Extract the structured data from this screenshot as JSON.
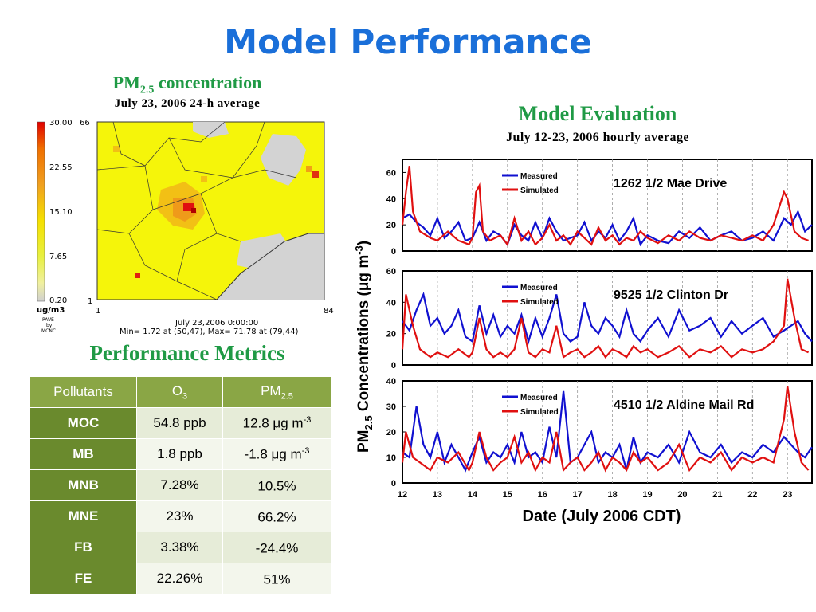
{
  "slide": {
    "title": "Model Performance"
  },
  "map": {
    "title_main": "PM",
    "title_sub": "2.5",
    "title_rest": " concentration",
    "subtitle": "July 23, 2006 24-h average",
    "colorbar_labels": [
      "30.00",
      "22.55",
      "15.10",
      "7.65",
      "0.20"
    ],
    "colorbar_unit": "ug/m3",
    "credit_lines": [
      "PAVE",
      "by",
      "MCNC"
    ],
    "axis_top_y": "66",
    "axis_bottom_y": "1",
    "axis_left_x": "1",
    "axis_right_x": "84",
    "timestamp": "July 23,2006 0:00:00",
    "minmax": "Min=  1.72 at (50,47), Max= 71.78 at (79,44)",
    "colors": {
      "low": "#f5f50a",
      "mid": "#f2b515",
      "high": "#e01010",
      "background": "#d3d3d3"
    }
  },
  "eval": {
    "title": "Model Evaluation",
    "subtitle": "July 12-23, 2006 hourly average",
    "ylabel_pre": "PM",
    "ylabel_sub": "2.5",
    "ylabel_mid": " Concentrations (μg m",
    "ylabel_sup": "-3",
    "ylabel_end": ")",
    "xlabel": "Date (July 2006 CDT)"
  },
  "chart_data": [
    {
      "type": "line",
      "station": "1262 1/2 Mae Drive",
      "x_ticks": [],
      "yticks": [
        0,
        20,
        40,
        60
      ],
      "ylim": [
        0,
        70
      ],
      "xlim": [
        12,
        23.7
      ],
      "grid": "dashed vertical at each day",
      "legend_position": "top-left",
      "series": [
        {
          "name": "Measured",
          "color": "#1010d0",
          "x": [
            12,
            12.2,
            12.4,
            12.6,
            12.8,
            13,
            13.2,
            13.4,
            13.6,
            13.8,
            14,
            14.2,
            14.4,
            14.6,
            14.8,
            15,
            15.2,
            15.4,
            15.6,
            15.8,
            16,
            16.2,
            16.4,
            16.6,
            16.8,
            17,
            17.2,
            17.4,
            17.6,
            17.8,
            18,
            18.2,
            18.4,
            18.6,
            18.8,
            19,
            19.3,
            19.6,
            19.9,
            20.2,
            20.5,
            20.8,
            21.1,
            21.4,
            21.7,
            22,
            22.3,
            22.6,
            22.9,
            23.1,
            23.3,
            23.5,
            23.7
          ],
          "y": [
            25,
            28,
            22,
            18,
            12,
            25,
            10,
            15,
            22,
            8,
            10,
            22,
            8,
            15,
            12,
            5,
            20,
            12,
            8,
            22,
            10,
            25,
            15,
            8,
            10,
            12,
            22,
            8,
            15,
            10,
            20,
            8,
            15,
            25,
            5,
            12,
            8,
            6,
            15,
            10,
            18,
            8,
            12,
            15,
            8,
            10,
            15,
            8,
            25,
            20,
            30,
            15,
            20
          ]
        },
        {
          "name": "Simulated",
          "color": "#e01010",
          "x": [
            12,
            12.1,
            12.2,
            12.3,
            12.5,
            12.8,
            13,
            13.3,
            13.6,
            13.9,
            14,
            14.1,
            14.2,
            14.3,
            14.5,
            14.8,
            15,
            15.2,
            15.4,
            15.6,
            15.8,
            16,
            16.2,
            16.4,
            16.6,
            16.8,
            17,
            17.2,
            17.4,
            17.6,
            17.8,
            18,
            18.2,
            18.4,
            18.6,
            18.8,
            19,
            19.3,
            19.6,
            19.9,
            20.2,
            20.5,
            20.8,
            21.1,
            21.4,
            21.7,
            22,
            22.3,
            22.6,
            22.9,
            23,
            23.2,
            23.4,
            23.6
          ],
          "y": [
            20,
            45,
            65,
            30,
            15,
            10,
            8,
            15,
            8,
            5,
            10,
            45,
            50,
            15,
            8,
            12,
            5,
            25,
            8,
            15,
            5,
            10,
            20,
            8,
            12,
            5,
            15,
            10,
            5,
            18,
            8,
            12,
            5,
            10,
            8,
            15,
            10,
            6,
            12,
            8,
            15,
            10,
            8,
            12,
            10,
            8,
            12,
            8,
            20,
            45,
            40,
            15,
            10,
            8
          ]
        }
      ]
    },
    {
      "type": "line",
      "station": "9525 1/2 Clinton Dr",
      "yticks": [
        0,
        20,
        40,
        60
      ],
      "ylim": [
        0,
        60
      ],
      "xlim": [
        12,
        23.7
      ],
      "grid": "dashed vertical at each day",
      "legend_position": "top-left",
      "series": [
        {
          "name": "Measured",
          "color": "#1010d0",
          "x": [
            12,
            12.2,
            12.4,
            12.6,
            12.8,
            13,
            13.2,
            13.4,
            13.6,
            13.8,
            14,
            14.2,
            14.4,
            14.6,
            14.8,
            15,
            15.2,
            15.4,
            15.6,
            15.8,
            16,
            16.2,
            16.4,
            16.6,
            16.8,
            17,
            17.2,
            17.4,
            17.6,
            17.8,
            18,
            18.2,
            18.4,
            18.6,
            18.8,
            19,
            19.3,
            19.6,
            19.9,
            20.2,
            20.5,
            20.8,
            21.1,
            21.4,
            21.7,
            22,
            22.3,
            22.6,
            22.9,
            23.1,
            23.3,
            23.5,
            23.7
          ],
          "y": [
            28,
            22,
            35,
            45,
            25,
            30,
            20,
            25,
            35,
            18,
            15,
            38,
            20,
            32,
            18,
            25,
            20,
            32,
            15,
            30,
            18,
            30,
            45,
            20,
            15,
            18,
            40,
            25,
            20,
            30,
            25,
            18,
            35,
            20,
            15,
            22,
            30,
            18,
            35,
            22,
            25,
            30,
            18,
            28,
            20,
            25,
            30,
            18,
            22,
            25,
            28,
            20,
            15
          ]
        },
        {
          "name": "Simulated",
          "color": "#e01010",
          "x": [
            12,
            12.1,
            12.3,
            12.5,
            12.8,
            13,
            13.3,
            13.6,
            13.9,
            14,
            14.2,
            14.4,
            14.6,
            14.8,
            15,
            15.2,
            15.4,
            15.6,
            15.8,
            16,
            16.2,
            16.4,
            16.6,
            16.8,
            17,
            17.2,
            17.4,
            17.6,
            17.8,
            18,
            18.2,
            18.4,
            18.6,
            18.8,
            19,
            19.3,
            19.6,
            19.9,
            20.2,
            20.5,
            20.8,
            21.1,
            21.4,
            21.7,
            22,
            22.3,
            22.6,
            22.9,
            23,
            23.2,
            23.4,
            23.6
          ],
          "y": [
            10,
            45,
            25,
            10,
            5,
            8,
            5,
            10,
            5,
            8,
            30,
            10,
            5,
            8,
            5,
            10,
            30,
            8,
            5,
            10,
            8,
            25,
            5,
            8,
            10,
            5,
            8,
            12,
            5,
            10,
            8,
            5,
            12,
            8,
            10,
            5,
            8,
            12,
            5,
            10,
            8,
            12,
            5,
            10,
            8,
            10,
            15,
            25,
            55,
            30,
            10,
            8
          ]
        }
      ]
    },
    {
      "type": "line",
      "station": "4510 1/2 Aldine Mail Rd",
      "x_ticks": [
        "12",
        "13",
        "14",
        "15",
        "16",
        "17",
        "18",
        "19",
        "20",
        "21",
        "22",
        "23"
      ],
      "yticks": [
        0,
        10,
        20,
        30,
        40
      ],
      "ylim": [
        0,
        40
      ],
      "xlim": [
        12,
        23.7
      ],
      "grid": "dashed vertical at each day",
      "legend_position": "top-left",
      "series": [
        {
          "name": "Measured",
          "color": "#1010d0",
          "x": [
            12,
            12.2,
            12.4,
            12.6,
            12.8,
            13,
            13.2,
            13.4,
            13.6,
            13.8,
            14,
            14.2,
            14.4,
            14.6,
            14.8,
            15,
            15.2,
            15.4,
            15.6,
            15.8,
            16,
            16.2,
            16.4,
            16.6,
            16.8,
            17,
            17.2,
            17.4,
            17.6,
            17.8,
            18,
            18.2,
            18.4,
            18.6,
            18.8,
            19,
            19.3,
            19.6,
            19.9,
            20.2,
            20.5,
            20.8,
            21.1,
            21.4,
            21.7,
            22,
            22.3,
            22.6,
            22.9,
            23.1,
            23.3,
            23.5,
            23.7
          ],
          "y": [
            12,
            10,
            30,
            15,
            10,
            20,
            8,
            15,
            10,
            5,
            12,
            18,
            8,
            12,
            10,
            15,
            8,
            20,
            10,
            12,
            8,
            22,
            10,
            36,
            8,
            10,
            15,
            20,
            8,
            12,
            10,
            15,
            5,
            18,
            8,
            12,
            10,
            15,
            8,
            20,
            12,
            10,
            15,
            8,
            12,
            10,
            15,
            12,
            18,
            15,
            12,
            10,
            14
          ]
        },
        {
          "name": "Simulated",
          "color": "#e01010",
          "x": [
            12,
            12.1,
            12.3,
            12.5,
            12.8,
            13,
            13.3,
            13.6,
            13.9,
            14,
            14.2,
            14.4,
            14.6,
            14.8,
            15,
            15.2,
            15.4,
            15.6,
            15.8,
            16,
            16.2,
            16.4,
            16.6,
            16.8,
            17,
            17.2,
            17.4,
            17.6,
            17.8,
            18,
            18.2,
            18.4,
            18.6,
            18.8,
            19,
            19.3,
            19.6,
            19.9,
            20.2,
            20.5,
            20.8,
            21.1,
            21.4,
            21.7,
            22,
            22.3,
            22.6,
            22.9,
            23,
            23.2,
            23.4,
            23.6
          ],
          "y": [
            8,
            20,
            10,
            8,
            5,
            10,
            8,
            12,
            5,
            8,
            20,
            10,
            5,
            8,
            10,
            18,
            8,
            12,
            5,
            10,
            8,
            20,
            5,
            8,
            10,
            5,
            8,
            12,
            5,
            10,
            8,
            5,
            12,
            8,
            10,
            5,
            8,
            15,
            5,
            10,
            8,
            12,
            5,
            10,
            8,
            10,
            8,
            25,
            38,
            20,
            8,
            5
          ]
        }
      ]
    }
  ],
  "metrics": {
    "title": "Performance Metrics",
    "headers": {
      "col1": "Pollutants",
      "col2_main": "O",
      "col2_sub": "3",
      "col3_main": "PM",
      "col3_sub": "2.5"
    },
    "rows": [
      {
        "name": "MOC",
        "o3": "54.8 ppb",
        "pm_val": "12.8 μg m",
        "pm_sup": "-3"
      },
      {
        "name": "MB",
        "o3": "1.8 ppb",
        "pm_val": "-1.8 μg m",
        "pm_sup": "-3"
      },
      {
        "name": "MNB",
        "o3": "7.28%",
        "pm_val": "10.5%",
        "pm_sup": ""
      },
      {
        "name": "MNE",
        "o3": "23%",
        "pm_val": "66.2%",
        "pm_sup": ""
      },
      {
        "name": "FB",
        "o3": "3.38%",
        "pm_val": "-24.4%",
        "pm_sup": ""
      },
      {
        "name": "FE",
        "o3": "22.26%",
        "pm_val": "51%",
        "pm_sup": ""
      }
    ]
  }
}
